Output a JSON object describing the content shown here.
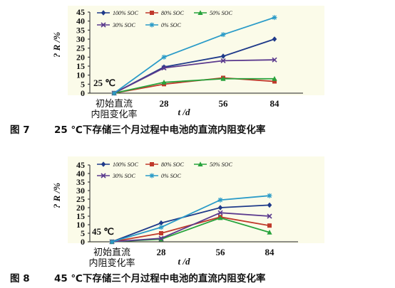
{
  "chart_data": [
    {
      "type": "line",
      "title": "",
      "xlabel": "t /d",
      "ylabel": "? R /%",
      "annotation": "25 ℃",
      "categories": [
        "初始直流内阻变化率",
        "28",
        "56",
        "84"
      ],
      "category_lines": [
        [
          "初始直流",
          "内阻变化率"
        ],
        [
          "28"
        ],
        [
          "56"
        ],
        [
          "84"
        ]
      ],
      "ylim": [
        0,
        45
      ],
      "yticks": [
        0,
        5,
        10,
        15,
        20,
        25,
        30,
        35,
        40,
        45
      ],
      "grid": false,
      "legend_placement": "top",
      "series": [
        {
          "name": "100% SOC",
          "color": "#1f3a8a",
          "marker": "diamond",
          "values": [
            0,
            14.5,
            20.5,
            30
          ]
        },
        {
          "name": "80% SOC",
          "color": "#c0392b",
          "marker": "square",
          "values": [
            0,
            5,
            8.5,
            6.5
          ]
        },
        {
          "name": "50% SOC",
          "color": "#27a33c",
          "marker": "triangle",
          "values": [
            0,
            6,
            8,
            8
          ]
        },
        {
          "name": "30% SOC",
          "color": "#5b3a8e",
          "marker": "x",
          "values": [
            0,
            14,
            18,
            18.5
          ]
        },
        {
          "name": "0% SOC",
          "color": "#2a9bc8",
          "marker": "star",
          "values": [
            0,
            20,
            32.5,
            42
          ]
        }
      ],
      "caption_label": "图 7",
      "caption": "25 ℃下存储三个月过程中电池的直流内阻变化率"
    },
    {
      "type": "line",
      "title": "",
      "xlabel": "t /d",
      "ylabel": "? R /%",
      "annotation": "45 ℃",
      "categories": [
        "初始直流内阻变化率",
        "28",
        "56",
        "84"
      ],
      "category_lines": [
        [
          "初始直流",
          "内阻变化率"
        ],
        [
          "28"
        ],
        [
          "56"
        ],
        [
          "84"
        ]
      ],
      "ylim": [
        0,
        45
      ],
      "yticks": [
        0,
        5,
        10,
        15,
        20,
        25,
        30,
        35,
        40,
        45
      ],
      "grid": false,
      "legend_placement": "top",
      "series": [
        {
          "name": "100% SOC",
          "color": "#1f3a8a",
          "marker": "diamond",
          "values": [
            0,
            11,
            20,
            21.5
          ]
        },
        {
          "name": "80% SOC",
          "color": "#c0392b",
          "marker": "square",
          "values": [
            0,
            5,
            14.5,
            9.5
          ]
        },
        {
          "name": "50% SOC",
          "color": "#27a33c",
          "marker": "triangle",
          "values": [
            0,
            1.5,
            14,
            5.5
          ]
        },
        {
          "name": "30% SOC",
          "color": "#5b3a8e",
          "marker": "x",
          "values": [
            0,
            2,
            17,
            15
          ]
        },
        {
          "name": "0% SOC",
          "color": "#2a9bc8",
          "marker": "star",
          "values": [
            0,
            8.5,
            24.5,
            27
          ]
        }
      ],
      "caption_label": "图 8",
      "caption": "45 ℃下存储三个月过程中电池的直流内阻变化率"
    }
  ]
}
